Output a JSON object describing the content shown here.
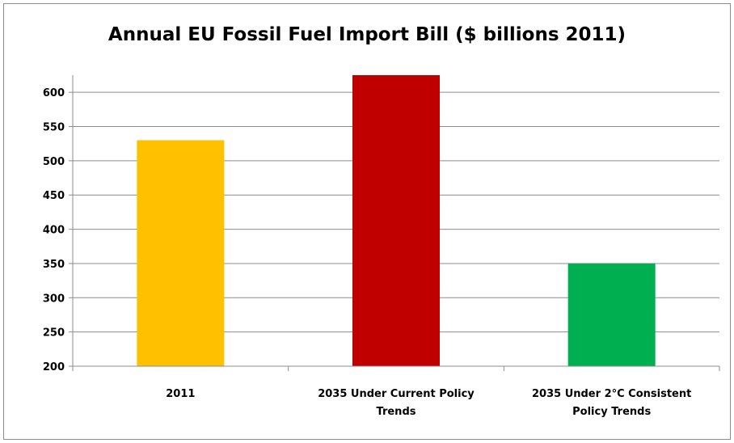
{
  "chart_data": {
    "type": "bar",
    "title": "Annual EU Fossil Fuel Import Bill ($ billions 2011)",
    "categories": [
      [
        "2011"
      ],
      [
        "2035 Under Current Policy",
        "Trends"
      ],
      [
        "2035 Under 2°C Consistent",
        "Policy Trends"
      ]
    ],
    "values": [
      530,
      625,
      350
    ],
    "colors": [
      "#FFC000",
      "#C00000",
      "#00B050"
    ],
    "ylim": [
      200,
      625
    ],
    "yticks": [
      200,
      250,
      300,
      350,
      400,
      450,
      500,
      550,
      600
    ],
    "grid": true,
    "legend": "none"
  }
}
